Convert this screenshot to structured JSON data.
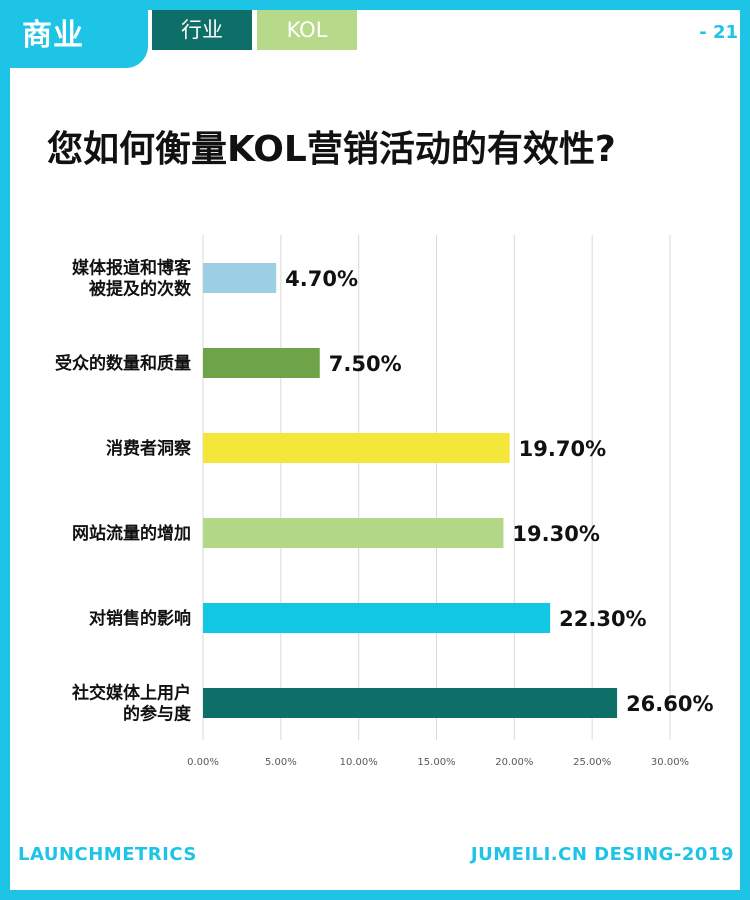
{
  "header": {
    "category": "商业",
    "tabs": [
      {
        "label": "行业",
        "color": "#0d6f68"
      },
      {
        "label": "KOL",
        "color": "#b6d98a"
      }
    ],
    "page_number": "- 21"
  },
  "colors": {
    "accent": "#1ec4e6"
  },
  "chart_data": {
    "type": "bar",
    "orientation": "horizontal",
    "title": "您如何衡量KOL营销活动的有效性?",
    "categories": [
      [
        "媒体报道和博客",
        "被提及的次数"
      ],
      [
        "受众的数量和质量"
      ],
      [
        "消费者洞察"
      ],
      [
        "网站流量的增加"
      ],
      [
        "对销售的影响"
      ],
      [
        "社交媒体上用户",
        "的参与度"
      ]
    ],
    "values": [
      4.7,
      7.5,
      19.7,
      19.3,
      22.3,
      26.6
    ],
    "value_labels": [
      "4.70%",
      "7.50%",
      "19.70%",
      "19.30%",
      "22.30%",
      "26.60%"
    ],
    "bar_colors": [
      "#9dcfe4",
      "#6fa34a",
      "#f4e63b",
      "#b3d887",
      "#12c7e4",
      "#0d6f68"
    ],
    "xlim": [
      0,
      30
    ],
    "xticks": [
      0,
      5,
      10,
      15,
      20,
      25,
      30
    ],
    "xtick_labels": [
      "0.00%",
      "5.00%",
      "10.00%",
      "15.00%",
      "20.00%",
      "25.00%",
      "30.00%"
    ],
    "grid": true,
    "legend": "none"
  },
  "footer": {
    "left": "LAUNCHMETRICS",
    "right": "JUMEILI.CN DESING-2019"
  }
}
